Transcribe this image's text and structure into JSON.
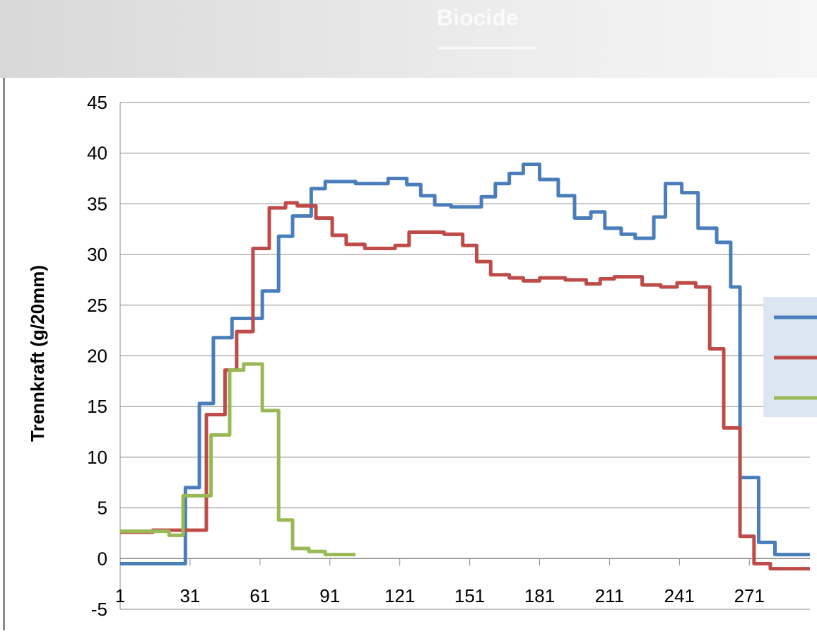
{
  "header": {
    "title": "Biocide"
  },
  "chart_data": {
    "type": "step-line",
    "ylabel": "Trennkraft (g/20mm)",
    "xlim": [
      1,
      297
    ],
    "xticks": [
      1,
      31,
      61,
      91,
      121,
      151,
      181,
      211,
      241,
      271
    ],
    "ylim": [
      -5,
      45
    ],
    "yticks": [
      -5,
      0,
      5,
      10,
      15,
      20,
      25,
      30,
      35,
      40,
      45
    ],
    "grid": true,
    "legend": "right",
    "series": [
      {
        "color": "#4a7ebb",
        "x": [
          1,
          29,
          35,
          41,
          49,
          62,
          69,
          75,
          83,
          89,
          102,
          116,
          124,
          130,
          136,
          143,
          156,
          162,
          168,
          174,
          181,
          189,
          196,
          203,
          209,
          216,
          222,
          230,
          235,
          242,
          249,
          257,
          263,
          267,
          275,
          282,
          297
        ],
        "values": [
          -0.5,
          7,
          15.3,
          21.8,
          23.7,
          26.4,
          31.8,
          33.8,
          36.5,
          37.2,
          37.0,
          37.5,
          36.9,
          35.8,
          34.9,
          34.7,
          35.7,
          37.0,
          38.0,
          38.9,
          37.4,
          35.8,
          33.6,
          34.2,
          32.6,
          32.0,
          31.6,
          33.7,
          37.0,
          36.1,
          32.6,
          31.2,
          26.8,
          8.0,
          1.6,
          0.4,
          0.4
        ]
      },
      {
        "color": "#be4b48",
        "x": [
          1,
          15,
          38,
          46,
          51,
          58,
          65,
          72,
          77,
          85,
          92,
          98,
          106,
          119,
          125,
          140,
          148,
          154,
          160,
          168,
          174,
          181,
          192,
          201,
          207,
          213,
          225,
          233,
          240,
          248,
          254,
          260,
          267,
          273,
          280,
          297
        ],
        "values": [
          2.6,
          2.8,
          14.2,
          18.6,
          22.4,
          30.6,
          34.6,
          35.1,
          34.8,
          33.6,
          31.9,
          31.0,
          30.6,
          30.9,
          32.2,
          32.0,
          30.9,
          29.3,
          28.0,
          27.7,
          27.4,
          27.7,
          27.5,
          27.1,
          27.6,
          27.8,
          27.0,
          26.8,
          27.2,
          26.8,
          20.7,
          12.9,
          2.2,
          -0.5,
          -1.0,
          -1.0
        ]
      },
      {
        "color": "#98b954",
        "x": [
          1,
          22,
          28,
          40,
          48,
          54,
          62,
          69,
          75,
          82,
          89,
          102
        ],
        "values": [
          2.7,
          2.3,
          6.2,
          12.2,
          18.6,
          19.2,
          14.6,
          3.8,
          1.0,
          0.7,
          0.4,
          0.4
        ]
      }
    ]
  }
}
